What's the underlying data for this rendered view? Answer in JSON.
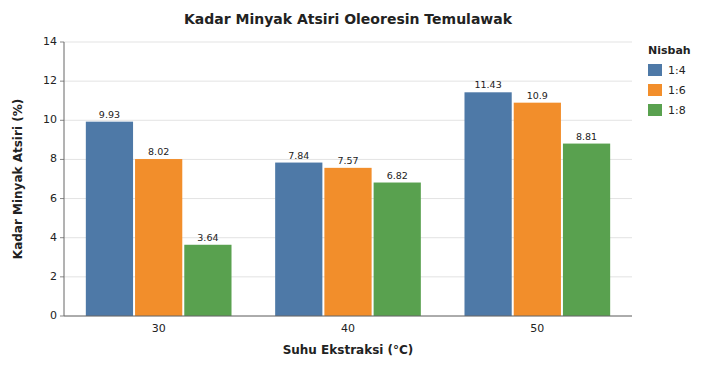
{
  "chart_data": {
    "type": "bar",
    "title": "Kadar Minyak Atsiri Oleoresin Temulawak",
    "xlabel": "Suhu Ekstraksi (°C)",
    "ylabel": "Kadar Minyak Atsiri (%)",
    "categories": [
      "30",
      "40",
      "50"
    ],
    "legend_title": "Nisbah",
    "series": [
      {
        "name": "1:4",
        "values": [
          9.93,
          7.84,
          11.43
        ]
      },
      {
        "name": "1:6",
        "values": [
          8.02,
          7.57,
          10.9
        ]
      },
      {
        "name": "1:8",
        "values": [
          3.64,
          6.82,
          8.81
        ]
      }
    ],
    "ylim": [
      0,
      14
    ],
    "yticks": [
      0,
      2,
      4,
      6,
      8,
      10,
      12,
      14
    ],
    "grid": true,
    "legend": "upper right",
    "data_labels": true
  }
}
